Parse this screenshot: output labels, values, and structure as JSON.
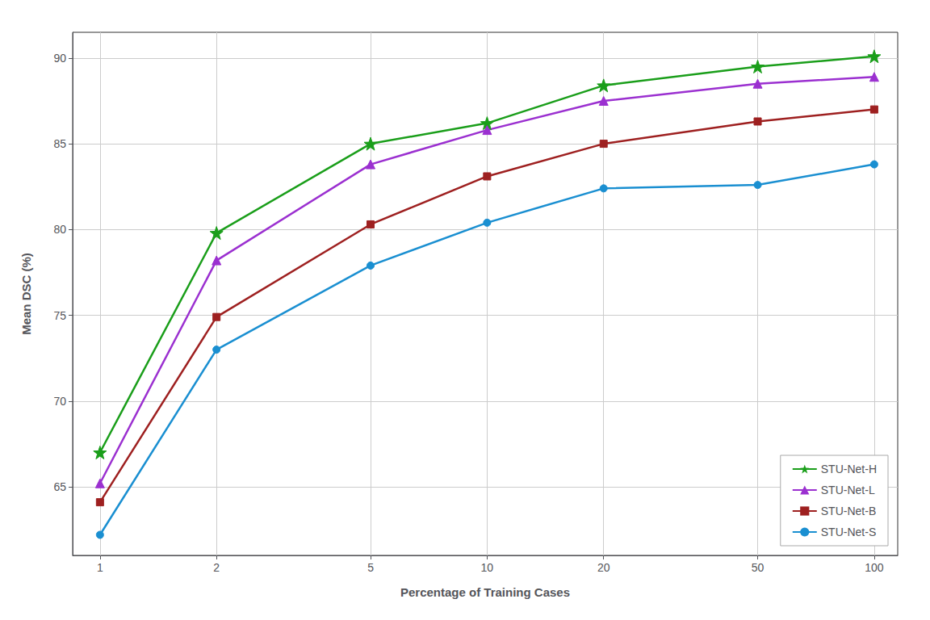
{
  "chart_data": {
    "type": "line",
    "x": [
      1,
      2,
      5,
      10,
      20,
      50,
      100
    ],
    "series": [
      {
        "name": "STU-Net-H",
        "color": "#1a9e1a",
        "marker": "star",
        "values": [
          67.0,
          79.8,
          85.0,
          86.2,
          88.4,
          89.5,
          90.1
        ]
      },
      {
        "name": "STU-Net-L",
        "color": "#9b30d0",
        "marker": "triangle",
        "values": [
          65.2,
          78.2,
          83.8,
          85.8,
          87.5,
          88.5,
          88.9
        ]
      },
      {
        "name": "STU-Net-B",
        "color": "#9e2020",
        "marker": "square",
        "values": [
          64.1,
          74.9,
          80.3,
          83.1,
          85.0,
          86.3,
          87.0
        ]
      },
      {
        "name": "STU-Net-S",
        "color": "#1a8fd1",
        "marker": "circle",
        "values": [
          62.2,
          73.0,
          77.9,
          80.4,
          82.4,
          82.6,
          83.8
        ]
      }
    ],
    "xlabel": "Percentage of Training Cases",
    "ylabel": "Mean DSC (%)",
    "xlim": [
      0.85,
      115
    ],
    "ylim": [
      61.0,
      91.5
    ],
    "xticks": [
      1,
      2,
      5,
      10,
      20,
      50,
      100
    ],
    "yticks": [
      65,
      70,
      75,
      80,
      85,
      90
    ],
    "log": "x",
    "grid": true,
    "legend": "lower right"
  }
}
